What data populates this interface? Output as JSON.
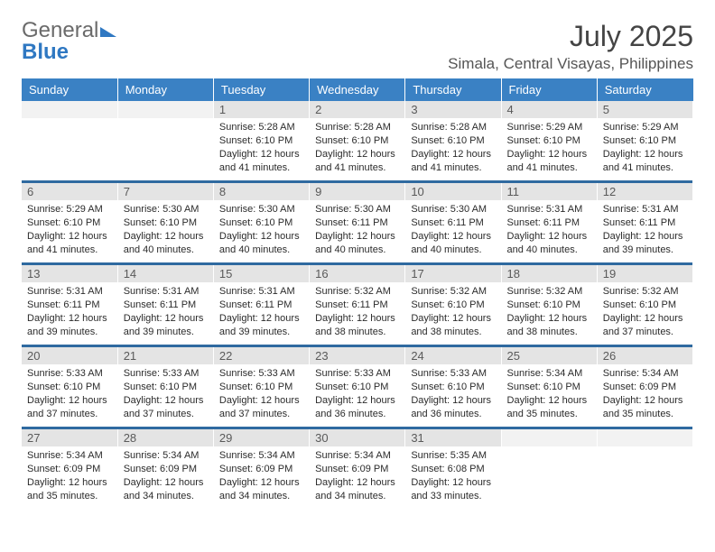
{
  "brand": {
    "line1": "General",
    "line2": "Blue"
  },
  "title": "July 2025",
  "location": "Simala, Central Visayas, Philippines",
  "colors": {
    "header_bg": "#3a81c4",
    "header_fg": "#ffffff",
    "daynum_bg": "#e4e4e4",
    "daynum_fg": "#5a5a5a",
    "sep": "#2f6aa0",
    "brand_gray": "#6a6a6a",
    "brand_blue": "#2f78c2"
  },
  "weekdays": [
    "Sunday",
    "Monday",
    "Tuesday",
    "Wednesday",
    "Thursday",
    "Friday",
    "Saturday"
  ],
  "weeks": [
    [
      {
        "day": "",
        "sunrise": "",
        "sunset": "",
        "daylight": ""
      },
      {
        "day": "",
        "sunrise": "",
        "sunset": "",
        "daylight": ""
      },
      {
        "day": "1",
        "sunrise": "Sunrise: 5:28 AM",
        "sunset": "Sunset: 6:10 PM",
        "daylight": "Daylight: 12 hours and 41 minutes."
      },
      {
        "day": "2",
        "sunrise": "Sunrise: 5:28 AM",
        "sunset": "Sunset: 6:10 PM",
        "daylight": "Daylight: 12 hours and 41 minutes."
      },
      {
        "day": "3",
        "sunrise": "Sunrise: 5:28 AM",
        "sunset": "Sunset: 6:10 PM",
        "daylight": "Daylight: 12 hours and 41 minutes."
      },
      {
        "day": "4",
        "sunrise": "Sunrise: 5:29 AM",
        "sunset": "Sunset: 6:10 PM",
        "daylight": "Daylight: 12 hours and 41 minutes."
      },
      {
        "day": "5",
        "sunrise": "Sunrise: 5:29 AM",
        "sunset": "Sunset: 6:10 PM",
        "daylight": "Daylight: 12 hours and 41 minutes."
      }
    ],
    [
      {
        "day": "6",
        "sunrise": "Sunrise: 5:29 AM",
        "sunset": "Sunset: 6:10 PM",
        "daylight": "Daylight: 12 hours and 41 minutes."
      },
      {
        "day": "7",
        "sunrise": "Sunrise: 5:30 AM",
        "sunset": "Sunset: 6:10 PM",
        "daylight": "Daylight: 12 hours and 40 minutes."
      },
      {
        "day": "8",
        "sunrise": "Sunrise: 5:30 AM",
        "sunset": "Sunset: 6:10 PM",
        "daylight": "Daylight: 12 hours and 40 minutes."
      },
      {
        "day": "9",
        "sunrise": "Sunrise: 5:30 AM",
        "sunset": "Sunset: 6:11 PM",
        "daylight": "Daylight: 12 hours and 40 minutes."
      },
      {
        "day": "10",
        "sunrise": "Sunrise: 5:30 AM",
        "sunset": "Sunset: 6:11 PM",
        "daylight": "Daylight: 12 hours and 40 minutes."
      },
      {
        "day": "11",
        "sunrise": "Sunrise: 5:31 AM",
        "sunset": "Sunset: 6:11 PM",
        "daylight": "Daylight: 12 hours and 40 minutes."
      },
      {
        "day": "12",
        "sunrise": "Sunrise: 5:31 AM",
        "sunset": "Sunset: 6:11 PM",
        "daylight": "Daylight: 12 hours and 39 minutes."
      }
    ],
    [
      {
        "day": "13",
        "sunrise": "Sunrise: 5:31 AM",
        "sunset": "Sunset: 6:11 PM",
        "daylight": "Daylight: 12 hours and 39 minutes."
      },
      {
        "day": "14",
        "sunrise": "Sunrise: 5:31 AM",
        "sunset": "Sunset: 6:11 PM",
        "daylight": "Daylight: 12 hours and 39 minutes."
      },
      {
        "day": "15",
        "sunrise": "Sunrise: 5:31 AM",
        "sunset": "Sunset: 6:11 PM",
        "daylight": "Daylight: 12 hours and 39 minutes."
      },
      {
        "day": "16",
        "sunrise": "Sunrise: 5:32 AM",
        "sunset": "Sunset: 6:11 PM",
        "daylight": "Daylight: 12 hours and 38 minutes."
      },
      {
        "day": "17",
        "sunrise": "Sunrise: 5:32 AM",
        "sunset": "Sunset: 6:10 PM",
        "daylight": "Daylight: 12 hours and 38 minutes."
      },
      {
        "day": "18",
        "sunrise": "Sunrise: 5:32 AM",
        "sunset": "Sunset: 6:10 PM",
        "daylight": "Daylight: 12 hours and 38 minutes."
      },
      {
        "day": "19",
        "sunrise": "Sunrise: 5:32 AM",
        "sunset": "Sunset: 6:10 PM",
        "daylight": "Daylight: 12 hours and 37 minutes."
      }
    ],
    [
      {
        "day": "20",
        "sunrise": "Sunrise: 5:33 AM",
        "sunset": "Sunset: 6:10 PM",
        "daylight": "Daylight: 12 hours and 37 minutes."
      },
      {
        "day": "21",
        "sunrise": "Sunrise: 5:33 AM",
        "sunset": "Sunset: 6:10 PM",
        "daylight": "Daylight: 12 hours and 37 minutes."
      },
      {
        "day": "22",
        "sunrise": "Sunrise: 5:33 AM",
        "sunset": "Sunset: 6:10 PM",
        "daylight": "Daylight: 12 hours and 37 minutes."
      },
      {
        "day": "23",
        "sunrise": "Sunrise: 5:33 AM",
        "sunset": "Sunset: 6:10 PM",
        "daylight": "Daylight: 12 hours and 36 minutes."
      },
      {
        "day": "24",
        "sunrise": "Sunrise: 5:33 AM",
        "sunset": "Sunset: 6:10 PM",
        "daylight": "Daylight: 12 hours and 36 minutes."
      },
      {
        "day": "25",
        "sunrise": "Sunrise: 5:34 AM",
        "sunset": "Sunset: 6:10 PM",
        "daylight": "Daylight: 12 hours and 35 minutes."
      },
      {
        "day": "26",
        "sunrise": "Sunrise: 5:34 AM",
        "sunset": "Sunset: 6:09 PM",
        "daylight": "Daylight: 12 hours and 35 minutes."
      }
    ],
    [
      {
        "day": "27",
        "sunrise": "Sunrise: 5:34 AM",
        "sunset": "Sunset: 6:09 PM",
        "daylight": "Daylight: 12 hours and 35 minutes."
      },
      {
        "day": "28",
        "sunrise": "Sunrise: 5:34 AM",
        "sunset": "Sunset: 6:09 PM",
        "daylight": "Daylight: 12 hours and 34 minutes."
      },
      {
        "day": "29",
        "sunrise": "Sunrise: 5:34 AM",
        "sunset": "Sunset: 6:09 PM",
        "daylight": "Daylight: 12 hours and 34 minutes."
      },
      {
        "day": "30",
        "sunrise": "Sunrise: 5:34 AM",
        "sunset": "Sunset: 6:09 PM",
        "daylight": "Daylight: 12 hours and 34 minutes."
      },
      {
        "day": "31",
        "sunrise": "Sunrise: 5:35 AM",
        "sunset": "Sunset: 6:08 PM",
        "daylight": "Daylight: 12 hours and 33 minutes."
      },
      {
        "day": "",
        "sunrise": "",
        "sunset": "",
        "daylight": ""
      },
      {
        "day": "",
        "sunrise": "",
        "sunset": "",
        "daylight": ""
      }
    ]
  ]
}
